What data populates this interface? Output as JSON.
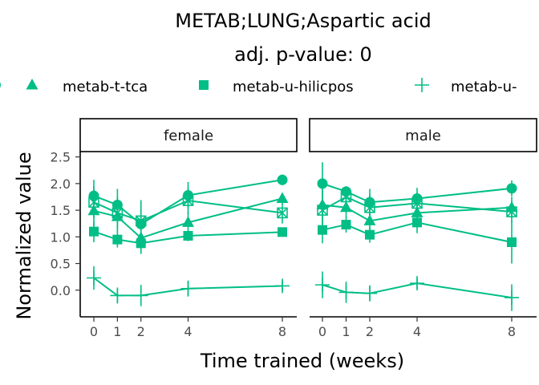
{
  "chart_data": {
    "type": "line",
    "title": "METAB;LUNG;Aspartic acid",
    "subtitle": "adj. p-value: 0",
    "xlabel": "Time trained (weeks)",
    "ylabel": "Normalized value",
    "x_ticks": [
      0,
      1,
      2,
      4,
      8
    ],
    "y_ticks": [
      0.0,
      0.5,
      1.0,
      1.5,
      2.0,
      2.5
    ],
    "y_tick_labels": [
      "0.0",
      "0.5",
      "1.0",
      "1.5",
      "2.0",
      "2.5"
    ],
    "ylim": [
      -0.5,
      2.6
    ],
    "grid": false,
    "legend_position": "top",
    "color": "#00BE86",
    "legend": [
      {
        "label": "metab-t-tca",
        "shape": "triangle"
      },
      {
        "label": "metab-u-hilicpos",
        "shape": "square"
      },
      {
        "label": "metab-u-",
        "shape": "plus"
      }
    ],
    "panels": [
      {
        "label": "female",
        "series": [
          {
            "shape": "circle",
            "x": [
              0,
              1,
              2,
              4,
              8
            ],
            "y": [
              1.77,
              1.6,
              1.24,
              1.78,
              2.07
            ],
            "err": [
              0.3,
              0.3,
              0.45,
              0.25,
              0.1
            ]
          },
          {
            "shape": "triangle",
            "x": [
              0,
              1,
              2,
              4,
              8
            ],
            "y": [
              1.49,
              1.38,
              0.98,
              1.27,
              1.72
            ],
            "err": [
              0.35,
              0.3,
              0.3,
              0.2,
              0.1
            ]
          },
          {
            "shape": "square",
            "x": [
              0,
              1,
              2,
              4,
              8
            ],
            "y": [
              1.1,
              0.95,
              0.88,
              1.02,
              1.09
            ],
            "err": [
              0.2,
              0.15,
              0.2,
              0.1,
              0.06
            ]
          },
          {
            "shape": "square-x",
            "x": [
              0,
              1,
              2,
              4,
              8
            ],
            "y": [
              1.65,
              1.45,
              1.3,
              1.68,
              1.45
            ],
            "err": [
              0.3,
              0.3,
              0.3,
              0.25,
              0.2
            ]
          },
          {
            "shape": "plus",
            "x": [
              0,
              1,
              2,
              4,
              8
            ],
            "y": [
              0.23,
              -0.1,
              -0.1,
              0.03,
              0.08
            ],
            "err": [
              0.22,
              0.15,
              0.2,
              0.15,
              0.1
            ]
          }
        ]
      },
      {
        "label": "male",
        "series": [
          {
            "shape": "circle",
            "x": [
              0,
              1,
              2,
              4,
              8
            ],
            "y": [
              2.0,
              1.85,
              1.65,
              1.72,
              1.91
            ],
            "err": [
              0.4,
              0.1,
              0.25,
              0.2,
              0.15
            ]
          },
          {
            "shape": "triangle",
            "x": [
              0,
              1,
              2,
              4,
              8
            ],
            "y": [
              1.6,
              1.55,
              1.3,
              1.45,
              1.55
            ],
            "err": [
              0.3,
              0.2,
              0.25,
              0.2,
              0.2
            ]
          },
          {
            "shape": "square",
            "x": [
              0,
              1,
              2,
              4,
              8
            ],
            "y": [
              1.13,
              1.23,
              1.04,
              1.27,
              0.9
            ],
            "err": [
              0.25,
              0.15,
              0.15,
              0.2,
              0.4
            ]
          },
          {
            "shape": "square-x",
            "x": [
              0,
              1,
              2,
              4,
              8
            ],
            "y": [
              1.5,
              1.75,
              1.55,
              1.63,
              1.47
            ],
            "err": [
              0.35,
              0.15,
              0.25,
              0.2,
              0.2
            ]
          },
          {
            "shape": "plus",
            "x": [
              0,
              1,
              2,
              4,
              8
            ],
            "y": [
              0.1,
              -0.04,
              -0.06,
              0.13,
              -0.14
            ],
            "err": [
              0.25,
              0.2,
              0.15,
              0.1,
              0.25
            ]
          }
        ]
      }
    ]
  }
}
